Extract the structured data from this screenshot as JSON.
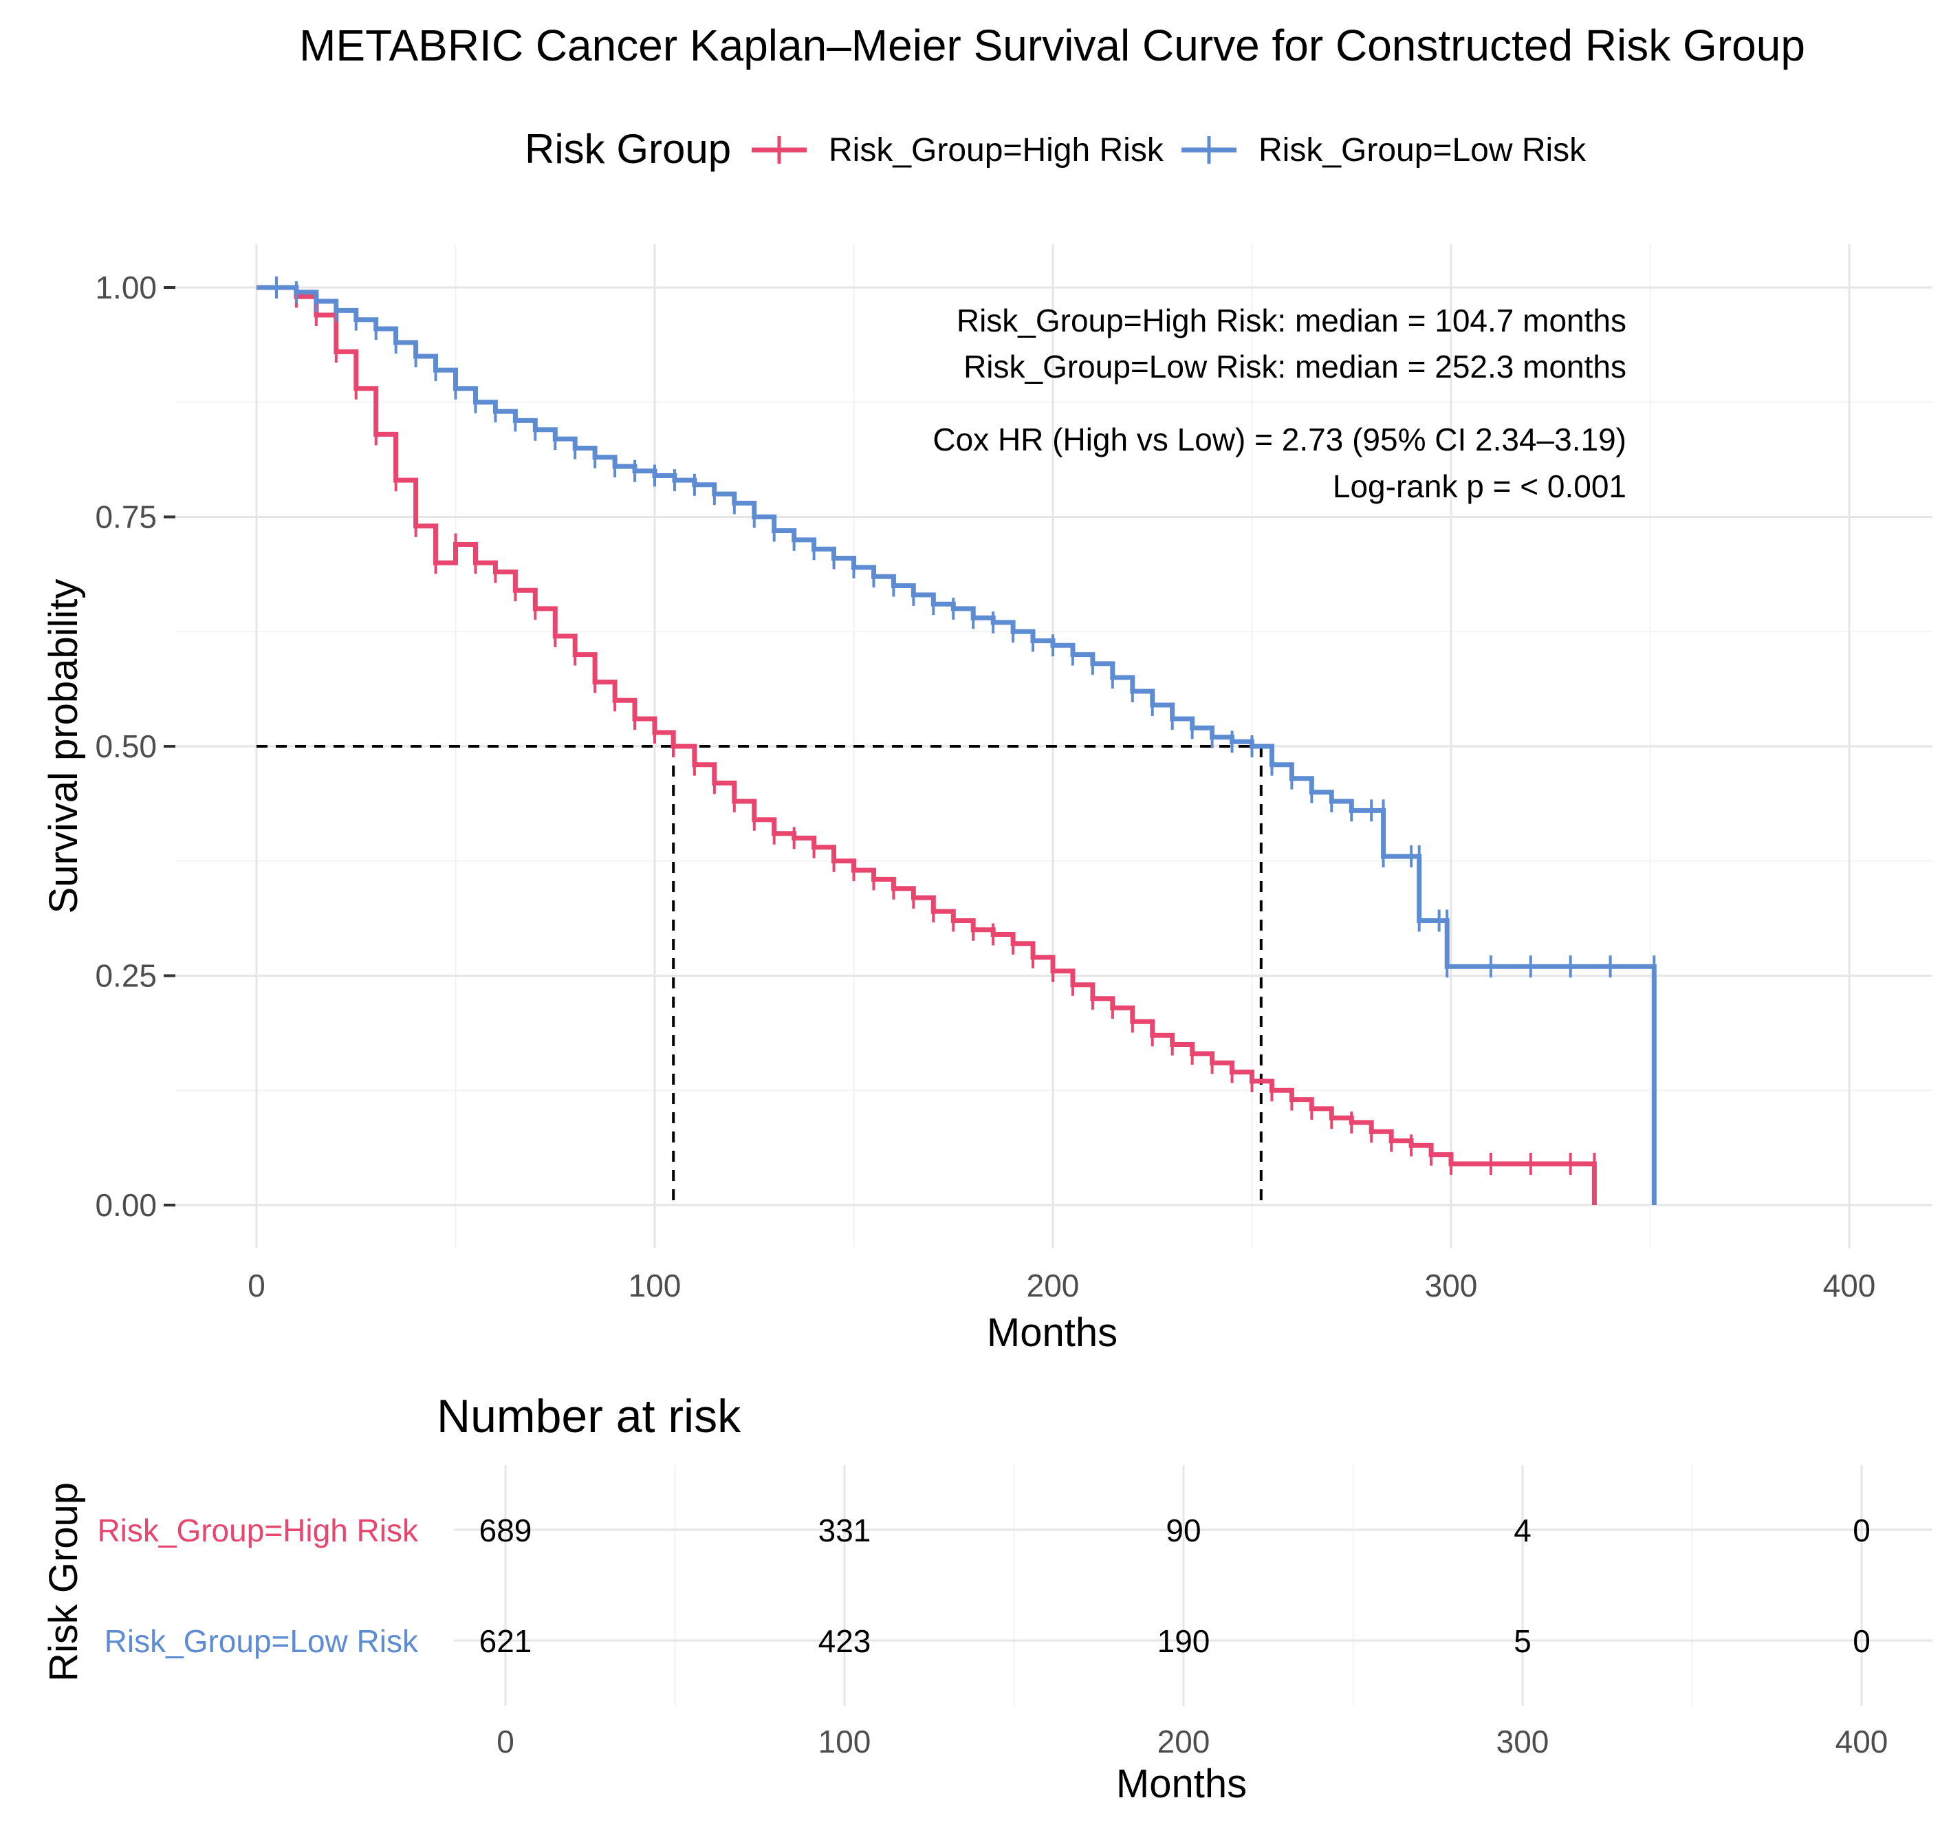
{
  "chart_data": {
    "type": "line",
    "subtype": "kaplan-meier",
    "title": "METABRIC Cancer Kaplan–Meier Survival Curve for Constructed Risk Group",
    "xlabel": "Months",
    "ylabel": "Survival probability",
    "xlim": [
      0,
      400
    ],
    "ylim": [
      0,
      1
    ],
    "x_ticks": [
      "0",
      "100",
      "200",
      "300",
      "400"
    ],
    "x_tick_values": [
      0,
      100,
      200,
      300,
      400
    ],
    "y_ticks": [
      "0.00",
      "0.25",
      "0.50",
      "0.75",
      "1.00"
    ],
    "y_tick_values": [
      0,
      0.25,
      0.5,
      0.75,
      1.0
    ],
    "grid": true,
    "legend": {
      "title": "Risk Group",
      "position": "top",
      "entries": [
        "Risk_Group=High Risk",
        "Risk_Group=Low Risk"
      ]
    },
    "annotations": {
      "median_high": "Risk_Group=High Risk: median = 104.7 months",
      "median_low": "Risk_Group=Low Risk: median = 252.3 months",
      "cox_hr": "Cox HR (High vs Low) = 2.73 (95% CI 2.34–3.19)",
      "log_rank": "Log-rank p = < 0.001"
    },
    "median_lines": {
      "y": 0.5,
      "x": [
        104.7,
        252.3
      ]
    },
    "series": [
      {
        "name": "Risk_Group=High Risk",
        "color": "#e8466e",
        "x": [
          0,
          5,
          10,
          15,
          20,
          25,
          30,
          35,
          40,
          45,
          50,
          55,
          60,
          65,
          70,
          75,
          80,
          85,
          90,
          95,
          100,
          104.7,
          110,
          115,
          120,
          125,
          130,
          135,
          140,
          145,
          150,
          155,
          160,
          165,
          170,
          175,
          180,
          185,
          190,
          195,
          200,
          205,
          210,
          215,
          220,
          225,
          230,
          235,
          240,
          245,
          250,
          255,
          260,
          265,
          270,
          275,
          280,
          285,
          290,
          295,
          300,
          310,
          320,
          330,
          336,
          336
        ],
        "y": [
          1.0,
          1.0,
          0.99,
          0.97,
          0.93,
          0.89,
          0.84,
          0.79,
          0.74,
          0.7,
          0.72,
          0.7,
          0.69,
          0.67,
          0.65,
          0.62,
          0.6,
          0.57,
          0.55,
          0.53,
          0.515,
          0.5,
          0.48,
          0.46,
          0.44,
          0.42,
          0.405,
          0.4,
          0.39,
          0.375,
          0.365,
          0.355,
          0.345,
          0.335,
          0.32,
          0.31,
          0.3,
          0.295,
          0.285,
          0.27,
          0.255,
          0.24,
          0.225,
          0.215,
          0.2,
          0.185,
          0.175,
          0.165,
          0.155,
          0.145,
          0.135,
          0.125,
          0.115,
          0.105,
          0.095,
          0.09,
          0.08,
          0.07,
          0.065,
          0.055,
          0.045,
          0.045,
          0.045,
          0.045,
          0.045,
          0.0
        ]
      },
      {
        "name": "Risk_Group=Low Risk",
        "color": "#5d8cd2",
        "x": [
          0,
          5,
          10,
          15,
          20,
          25,
          30,
          35,
          40,
          45,
          50,
          55,
          60,
          65,
          70,
          75,
          80,
          85,
          90,
          95,
          100,
          105,
          110,
          115,
          120,
          125,
          130,
          135,
          140,
          145,
          150,
          155,
          160,
          165,
          170,
          175,
          180,
          185,
          190,
          195,
          200,
          205,
          210,
          215,
          220,
          225,
          230,
          235,
          240,
          245,
          250,
          255,
          260,
          265,
          270,
          275,
          280,
          283,
          283,
          290,
          292,
          292,
          297,
          299,
          299,
          310,
          320,
          330,
          340,
          351,
          351
        ],
        "y": [
          1.0,
          1.0,
          0.995,
          0.985,
          0.975,
          0.965,
          0.955,
          0.94,
          0.925,
          0.91,
          0.89,
          0.875,
          0.865,
          0.855,
          0.845,
          0.835,
          0.825,
          0.815,
          0.805,
          0.8,
          0.795,
          0.79,
          0.785,
          0.775,
          0.765,
          0.75,
          0.735,
          0.725,
          0.715,
          0.705,
          0.695,
          0.685,
          0.675,
          0.665,
          0.655,
          0.65,
          0.64,
          0.635,
          0.625,
          0.615,
          0.61,
          0.6,
          0.59,
          0.575,
          0.56,
          0.545,
          0.53,
          0.52,
          0.51,
          0.505,
          0.5,
          0.48,
          0.465,
          0.45,
          0.44,
          0.43,
          0.43,
          0.43,
          0.38,
          0.38,
          0.38,
          0.31,
          0.31,
          0.31,
          0.26,
          0.26,
          0.26,
          0.26,
          0.26,
          0.26,
          0.0
        ]
      }
    ],
    "risk_table": {
      "title": "Number at risk",
      "ylabel": "Risk Group",
      "xlabel": "Months",
      "time_points": [
        "0",
        "100",
        "200",
        "300",
        "400"
      ],
      "time_values": [
        0,
        100,
        200,
        300,
        400
      ],
      "rows": [
        {
          "label": "Risk_Group=High Risk",
          "color": "#e8466e",
          "counts": [
            "689",
            "331",
            "90",
            "4",
            "0"
          ]
        },
        {
          "label": "Risk_Group=Low Risk",
          "color": "#5d8cd2",
          "counts": [
            "621",
            "423",
            "190",
            "5",
            "0"
          ]
        }
      ]
    }
  }
}
